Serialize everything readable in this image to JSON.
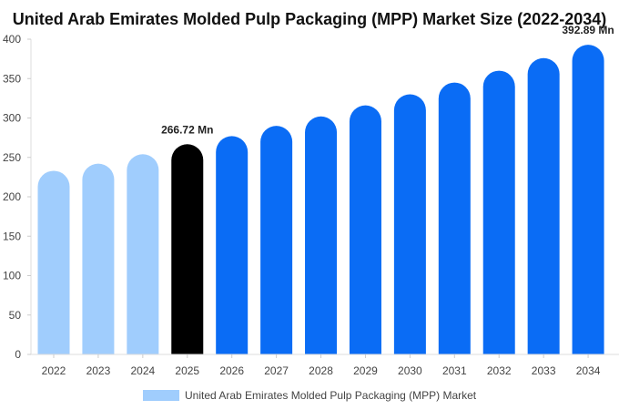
{
  "chart_data": {
    "type": "bar",
    "title": "United Arab Emirates Molded Pulp Packaging (MPP) Market Size (2022-2034)",
    "xlabel": "",
    "ylabel": "",
    "categories": [
      "2022",
      "2023",
      "2024",
      "2025",
      "2026",
      "2027",
      "2028",
      "2029",
      "2030",
      "2031",
      "2032",
      "2033",
      "2034"
    ],
    "series": [
      {
        "name": "United Arab Emirates Molded Pulp Packaging (MPP) Market",
        "values": [
          233,
          242,
          254,
          266.72,
          277,
          290,
          302,
          316,
          330,
          345,
          360,
          376,
          392.89
        ]
      }
    ],
    "ylim": [
      0,
      400
    ],
    "yticks": [
      0,
      50,
      100,
      150,
      200,
      250,
      300,
      350,
      400
    ],
    "grid": false,
    "legend_position": "bottom",
    "bar_colors": [
      "#a0cdfd",
      "#a0cdfd",
      "#a0cdfd",
      "#000000",
      "#0a6cf5",
      "#0a6cf5",
      "#0a6cf5",
      "#0a6cf5",
      "#0a6cf5",
      "#0a6cf5",
      "#0a6cf5",
      "#0a6cf5",
      "#0a6cf5"
    ],
    "legend_color": "#a0cdfd",
    "annotations": [
      {
        "index": 3,
        "text": "266.72 Mn"
      },
      {
        "index": 12,
        "text": "392.89 Mn"
      }
    ]
  }
}
